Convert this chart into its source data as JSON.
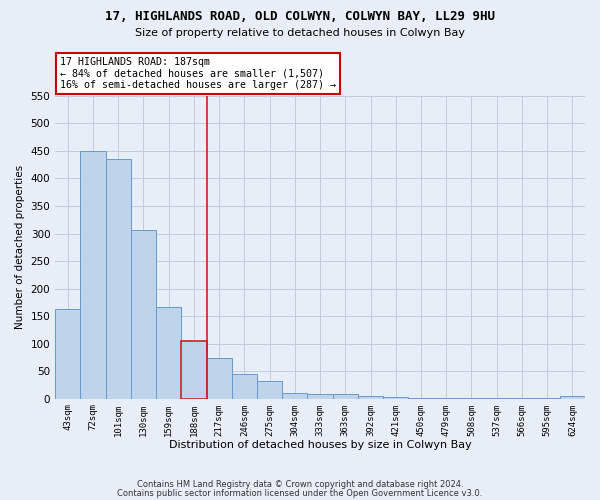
{
  "title_line1": "17, HIGHLANDS ROAD, OLD COLWYN, COLWYN BAY, LL29 9HU",
  "title_line2": "Size of property relative to detached houses in Colwyn Bay",
  "xlabel": "Distribution of detached houses by size in Colwyn Bay",
  "ylabel": "Number of detached properties",
  "footer_line1": "Contains HM Land Registry data © Crown copyright and database right 2024.",
  "footer_line2": "Contains public sector information licensed under the Open Government Licence v3.0.",
  "categories": [
    "43sqm",
    "72sqm",
    "101sqm",
    "130sqm",
    "159sqm",
    "188sqm",
    "217sqm",
    "246sqm",
    "275sqm",
    "304sqm",
    "333sqm",
    "363sqm",
    "392sqm",
    "421sqm",
    "450sqm",
    "479sqm",
    "508sqm",
    "537sqm",
    "566sqm",
    "595sqm",
    "624sqm"
  ],
  "values": [
    163,
    450,
    436,
    307,
    167,
    105,
    74,
    45,
    33,
    10,
    8,
    8,
    5,
    3,
    2,
    2,
    2,
    2,
    1,
    1,
    5
  ],
  "bar_color": "#bdd4ea",
  "bar_edge_color": "#6699cc",
  "highlight_bar_index": 5,
  "highlight_bar_edge_color": "#cc2222",
  "annotation_text": "17 HIGHLANDS ROAD: 187sqm\n← 84% of detached houses are smaller (1,507)\n16% of semi-detached houses are larger (287) →",
  "annotation_box_color": "#ffffff",
  "annotation_border_color": "#cc0000",
  "ylim": [
    0,
    550
  ],
  "yticks": [
    0,
    50,
    100,
    150,
    200,
    250,
    300,
    350,
    400,
    450,
    500,
    550
  ],
  "grid_color": "#c0ccdd",
  "background_color": "#e8eef8",
  "plot_bg_color": "#e8eef8"
}
